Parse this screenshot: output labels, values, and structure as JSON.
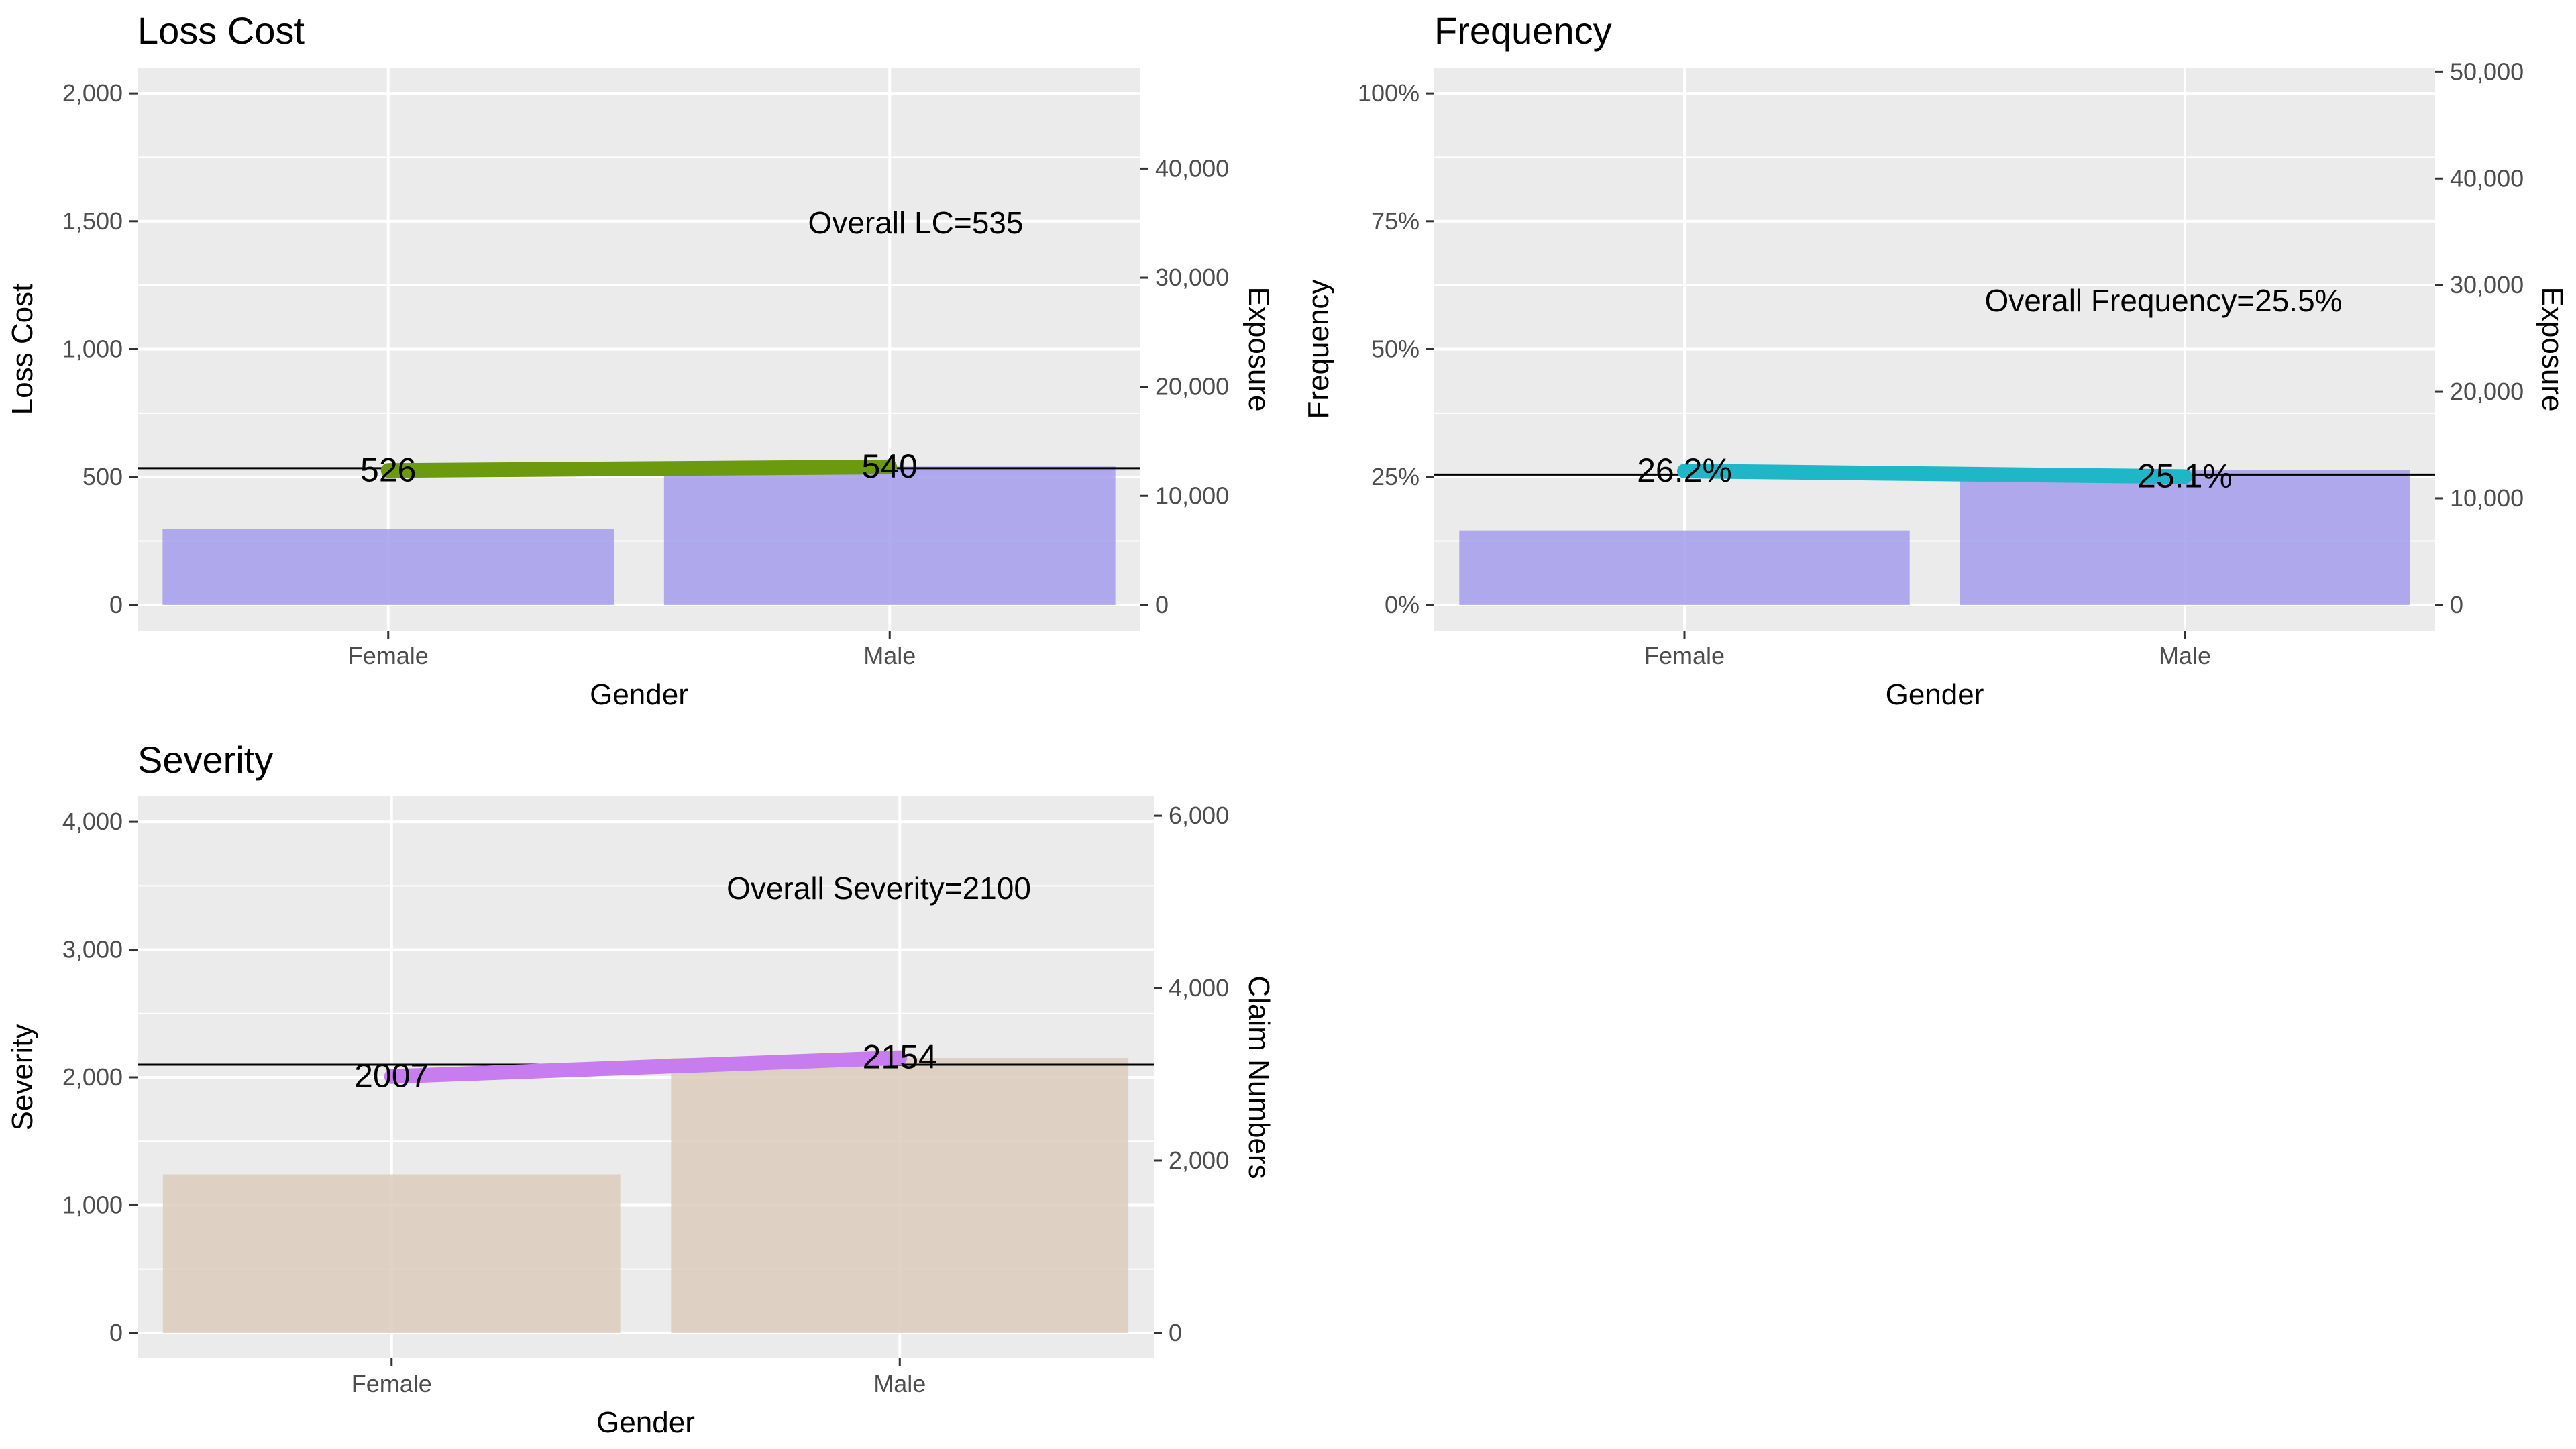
{
  "chart_data": [
    {
      "type": "bar",
      "title": "Loss Cost",
      "xlabel": "Gender",
      "ylabel": "Loss Cost",
      "y2label": "Exposure",
      "categories": [
        "Female",
        "Male"
      ],
      "ylim": [
        0,
        2000
      ],
      "y2lim": [
        0,
        46905
      ],
      "yticks": [
        0,
        500,
        1000,
        1500,
        2000
      ],
      "y2ticks": [
        0,
        10000,
        20000,
        30000,
        40000
      ],
      "series": [
        {
          "role": "bar",
          "axis": "right",
          "values": [
            7000,
            12700
          ],
          "color": "#a59cec"
        },
        {
          "role": "line",
          "axis": "left",
          "values": [
            526,
            540
          ],
          "labels": [
            "526",
            "540"
          ],
          "color": "#6b9a0f"
        }
      ],
      "reference_line": {
        "value": 535,
        "label": "Overall LC=535"
      },
      "grid": true,
      "legend": "none"
    },
    {
      "type": "bar",
      "title": "Frequency",
      "xlabel": "Gender",
      "ylabel": "Frequency",
      "y2label": "Exposure",
      "categories": [
        "Female",
        "Male"
      ],
      "ylim": [
        0,
        1
      ],
      "y2lim": [
        0,
        48000
      ],
      "yticks": [
        0,
        0.25,
        0.5,
        0.75,
        1
      ],
      "ytick_labels": [
        "0%",
        "25%",
        "50%",
        "75%",
        "100%"
      ],
      "y2ticks": [
        0,
        10000,
        20000,
        30000,
        40000,
        50000
      ],
      "series": [
        {
          "role": "bar",
          "axis": "right",
          "values": [
            7000,
            12700
          ],
          "color": "#a59cec"
        },
        {
          "role": "line",
          "axis": "left",
          "values": [
            0.262,
            0.251
          ],
          "labels": [
            "26.2%",
            "25.1%"
          ],
          "color": "#1fb7c8"
        }
      ],
      "reference_line": {
        "value": 0.255,
        "label": "Overall Frequency=25.5%"
      },
      "grid": true,
      "legend": "none"
    },
    {
      "type": "bar",
      "title": "Severity",
      "xlabel": "Gender",
      "ylabel": "Severity",
      "y2label": "Claim Numbers",
      "categories": [
        "Female",
        "Male"
      ],
      "ylim": [
        0,
        4000
      ],
      "y2lim": [
        0,
        5930
      ],
      "yticks": [
        0,
        1000,
        2000,
        3000,
        4000
      ],
      "y2ticks": [
        0,
        2000,
        4000,
        6000
      ],
      "series": [
        {
          "role": "bar",
          "axis": "right",
          "values": [
            1840,
            3190
          ],
          "color": "#dccbbb"
        },
        {
          "role": "line",
          "axis": "left",
          "values": [
            2007,
            2154
          ],
          "labels": [
            "2007",
            "2154"
          ],
          "color": "#c77cf0"
        }
      ],
      "reference_line": {
        "value": 2100,
        "label": "Overall Severity=2100"
      },
      "grid": true,
      "legend": "none"
    }
  ]
}
